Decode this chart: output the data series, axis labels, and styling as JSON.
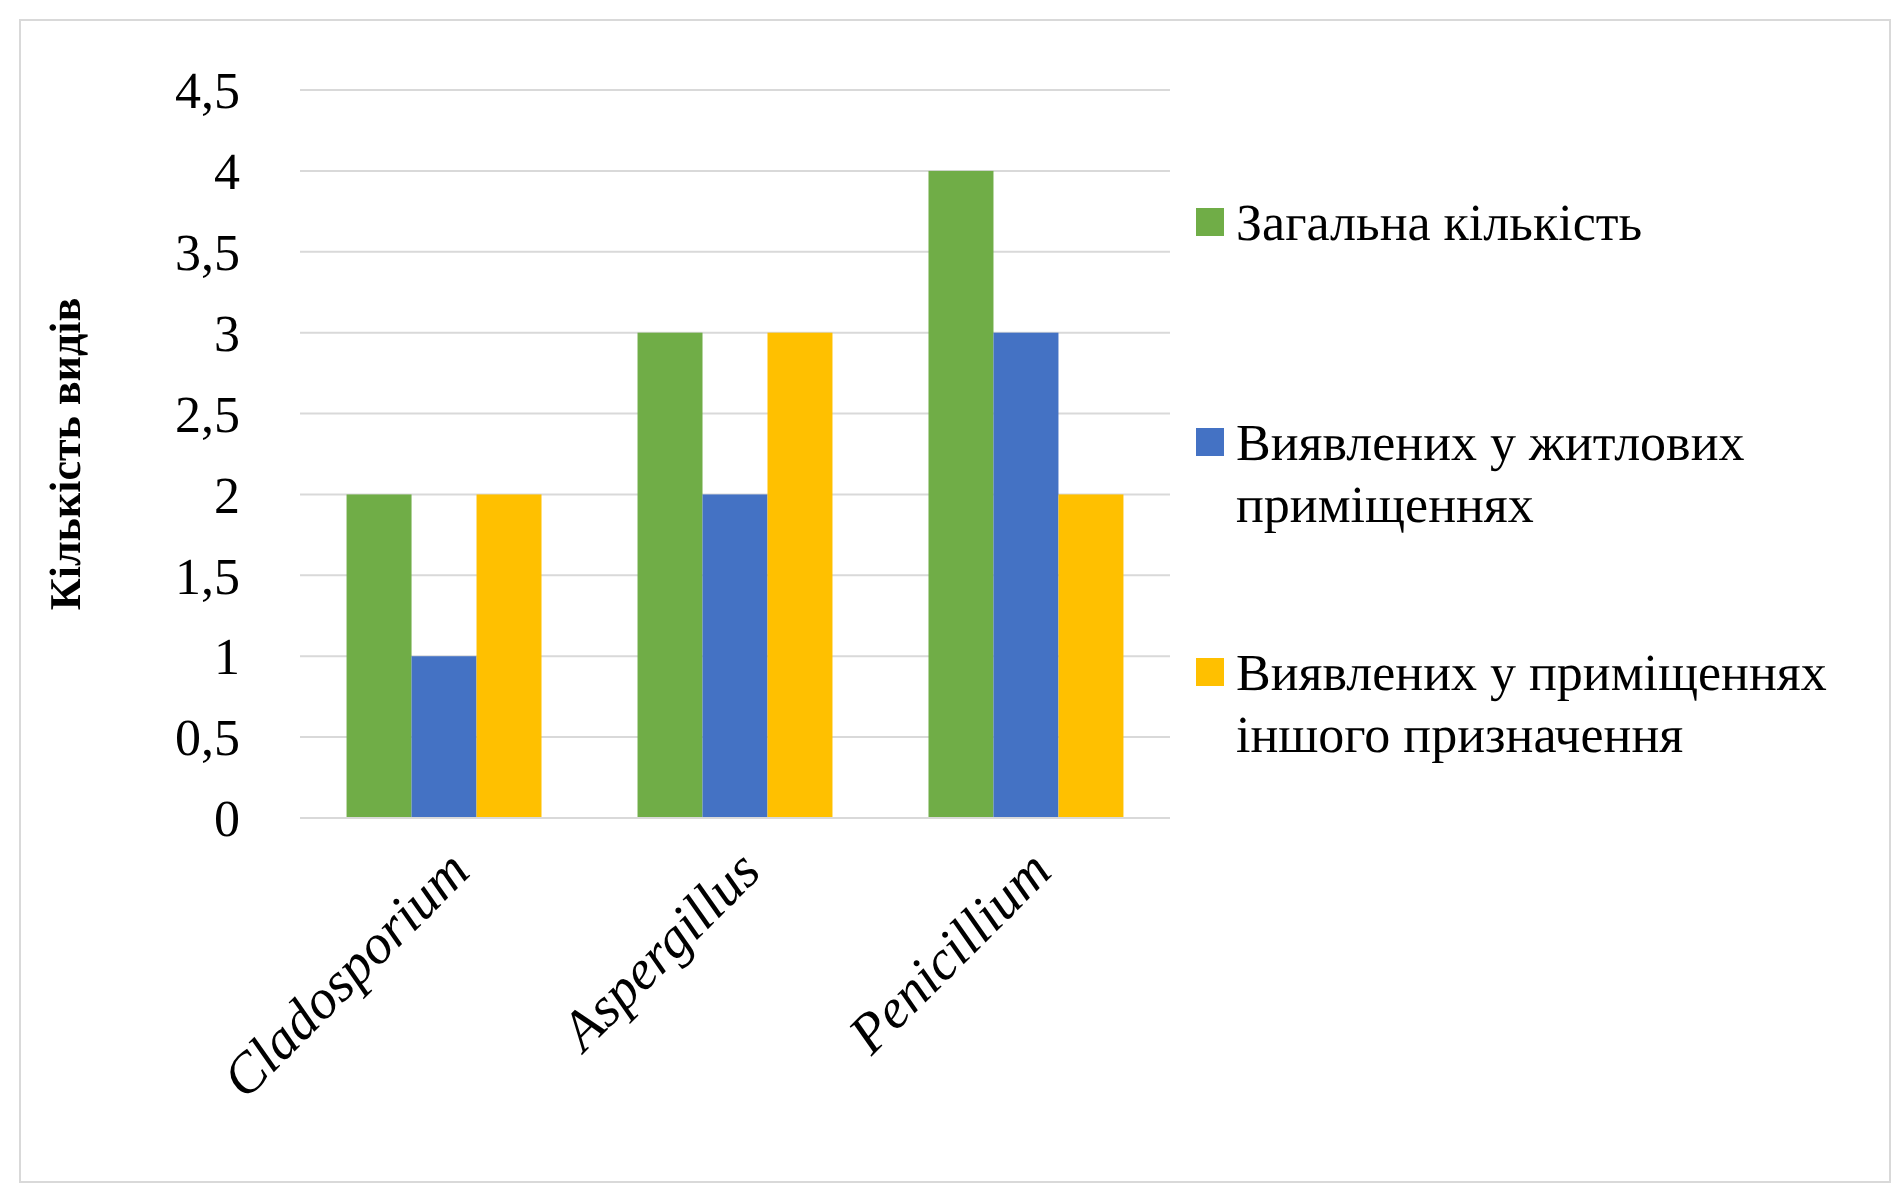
{
  "chart_data": {
    "type": "bar",
    "ylabel": "Кількість видів",
    "categories": [
      "Cladosporium",
      "Aspergillus",
      "Penicillium"
    ],
    "series": [
      {
        "name": "Загальна кількість",
        "color": "#70ad47",
        "values": [
          2,
          3,
          4
        ]
      },
      {
        "name": "Виявлених у житлових приміщеннях",
        "color": "#4472c4",
        "values": [
          1,
          2,
          3
        ]
      },
      {
        "name": "Виявлених у приміщеннях іншого призначення",
        "color": "#ffc000",
        "values": [
          2,
          3,
          2
        ]
      }
    ],
    "ylim": [
      0,
      4.5
    ],
    "yticks": [
      0,
      {
        "value": 0.5,
        "label": "0,5"
      },
      1,
      {
        "value": 1.5,
        "label": "1,5"
      },
      2,
      {
        "value": 2.5,
        "label": "2,5"
      },
      3,
      {
        "value": 3.5,
        "label": "3,5"
      },
      4,
      {
        "value": 4.5,
        "label": "4,5"
      }
    ],
    "grid": "y",
    "legend": "right"
  }
}
